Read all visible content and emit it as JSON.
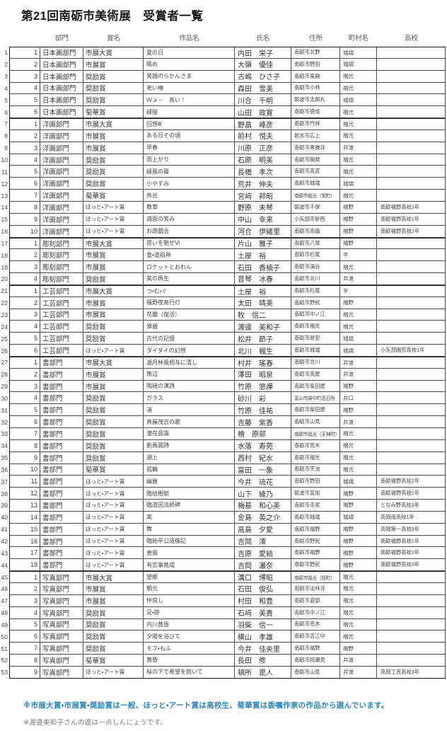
{
  "title": "第21回南砺市美術展　受賞者一覧",
  "accent_note_blue": "#2e86c1",
  "table": {
    "headers": [
      "部門",
      "賞名",
      "作品名",
      "氏名",
      "住所",
      "町村名",
      "高校"
    ],
    "section_starts": [
      7,
      17,
      21,
      27,
      45
    ],
    "rows": [
      {
        "no": 1,
        "sub": 1,
        "dept": "日本画部門",
        "award": "市展大賞",
        "work": "夏の日",
        "name": "内田　栄子",
        "addr": "南砺市北野",
        "town": "城端",
        "school": ""
      },
      {
        "no": 2,
        "sub": 2,
        "dept": "日本画部門",
        "award": "市展賞",
        "work": "眺め",
        "name": "大嶺　優佳",
        "addr": "南砺市野田",
        "town": "城端",
        "school": ""
      },
      {
        "no": 3,
        "sub": 3,
        "dept": "日本画部門",
        "award": "奨励賞",
        "work": "笑顔のらかんさま",
        "name": "古嶋　ひさ子",
        "addr": "南砺市東殿",
        "town": "福光",
        "school": ""
      },
      {
        "no": 4,
        "sub": 4,
        "dept": "日本画部門",
        "award": "奨励賞",
        "work": "老い椿",
        "name": "森田　雪美",
        "addr": "南砺市小林",
        "town": "福光",
        "school": ""
      },
      {
        "no": 5,
        "sub": 5,
        "dept": "日本画部門",
        "award": "奨励賞",
        "work": "Ｗａ－　高い！",
        "name": "川合　千明",
        "addr": "砺波市太郎丸",
        "town": "城端",
        "school": ""
      },
      {
        "no": 6,
        "sub": 6,
        "dept": "日本画部門",
        "award": "菊華賞",
        "work": "緑陰",
        "name": "山田　政寛",
        "addr": "南砺市徳成",
        "town": "福光",
        "school": ""
      },
      {
        "no": 7,
        "sub": 1,
        "dept": "洋画部門",
        "award": "市展大賞",
        "work": "回想Ⅲ",
        "name": "野畠　峰彦",
        "addr": "南砺市竹林",
        "town": "福光",
        "school": ""
      },
      {
        "no": 8,
        "sub": 2,
        "dept": "洋画部門",
        "award": "市展賞",
        "work": "ある日その頃",
        "name": "前村　悦夫",
        "addr": "射水市広上",
        "town": "福光",
        "school": ""
      },
      {
        "no": 9,
        "sub": 3,
        "dept": "洋画部門",
        "award": "市展賞",
        "work": "早春",
        "name": "川原　正彦",
        "addr": "南砺市専勝寺",
        "town": "井波",
        "school": ""
      },
      {
        "no": 10,
        "sub": 4,
        "dept": "洋画部門",
        "award": "奨励賞",
        "work": "雨上がり",
        "name": "石原　明美",
        "addr": "南砺市開発",
        "town": "福光",
        "school": ""
      },
      {
        "no": 11,
        "sub": 5,
        "dept": "洋画部門",
        "award": "奨励賞",
        "work": "緑風の霧",
        "name": "長橋　孝次",
        "addr": "南砺市高宮",
        "town": "福光",
        "school": ""
      },
      {
        "no": 12,
        "sub": 6,
        "dept": "洋画部門",
        "award": "奨励賞",
        "work": "小やすみ",
        "name": "荒井　伸夫",
        "addr": "南砺市城端",
        "town": "城端",
        "school": ""
      },
      {
        "no": 13,
        "sub": 7,
        "dept": "洋画部門",
        "award": "菊華賞",
        "work": "外光",
        "name": "宮﨑　邦昭",
        "addr": "南砺市福光（栄町）",
        "town": "福光",
        "school": ""
      },
      {
        "no": 14,
        "sub": 8,
        "dept": "洋画部門",
        "award": "ほっと・アート賞",
        "work": "教育",
        "name": "野原　未琴",
        "addr": "砺波市千保",
        "town": "福野",
        "school": "南砺福野高校2年"
      },
      {
        "no": 15,
        "sub": 9,
        "dept": "洋画部門",
        "award": "ほっと・アート賞",
        "work": "満面の笑み",
        "name": "中山　幸来",
        "addr": "小矢部市新西",
        "town": "福野",
        "school": "南砺福野高校1年"
      },
      {
        "no": 16,
        "sub": 10,
        "dept": "洋画部門",
        "award": "ほっと・アート賞",
        "work": "お遊戯会",
        "name": "河合　伊緒里",
        "addr": "南砺市高儀",
        "town": "福野",
        "school": "南砺福野高校2年"
      },
      {
        "no": 17,
        "sub": 1,
        "dept": "彫刻部門",
        "award": "市展大賞",
        "work": "思いを馳せⅥ",
        "name": "片山　雅子",
        "addr": "南砺市八塚",
        "town": "福野",
        "school": ""
      },
      {
        "no": 18,
        "sub": 2,
        "dept": "彫刻部門",
        "award": "市展賞",
        "work": "食・道祖神",
        "name": "土屋　裕",
        "addr": "南砺市杉尾",
        "town": "平",
        "school": ""
      },
      {
        "no": 19,
        "sub": 3,
        "dept": "彫刻部門",
        "award": "市展賞",
        "work": "ロケットとおわん",
        "name": "石田　香楠子",
        "addr": "南砺市湯谷",
        "town": "福光",
        "school": ""
      },
      {
        "no": 20,
        "sub": 4,
        "dept": "彫刻部門",
        "award": "奨励賞",
        "work": "美の再生",
        "name": "音琴　冰春",
        "addr": "南砺市北川",
        "town": "井波",
        "school": ""
      },
      {
        "no": 21,
        "sub": 1,
        "dept": "工芸部門",
        "award": "市展大賞",
        "work": "つ・む・ぐ",
        "name": "土屋　裕",
        "addr": "南砺市杉尾",
        "town": "平",
        "school": ""
      },
      {
        "no": 22,
        "sub": 2,
        "dept": "工芸部門",
        "award": "市展賞",
        "work": "福野夜高行灯",
        "name": "太田　晴美",
        "addr": "南砺市野尻",
        "town": "福野",
        "school": ""
      },
      {
        "no": 23,
        "sub": 3,
        "dept": "工芸部門",
        "award": "市展賞",
        "work": "花器（復活）",
        "name": "牧　信二",
        "addr": "南砺市中ノ江",
        "town": "福光",
        "school": ""
      },
      {
        "no": 24,
        "sub": 4,
        "dept": "工芸部門",
        "award": "奨励賞",
        "work": "翠碧",
        "name": "渡邊　美和子",
        "addr": "南砺市福光",
        "town": "福光",
        "school": ""
      },
      {
        "no": 25,
        "sub": 5,
        "dept": "工芸部門",
        "award": "奨励賞",
        "work": "古代の記憶",
        "name": "松井　節子",
        "addr": "南砺市是安",
        "town": "城端",
        "school": ""
      },
      {
        "no": 26,
        "sub": 6,
        "dept": "工芸部門",
        "award": "ほっと・アート賞",
        "work": "タイダイの幻想",
        "name": "北川　楓生",
        "addr": "南砺市城端",
        "town": "城端",
        "school": "小矢部園芸高校1年"
      },
      {
        "no": 27,
        "sub": 1,
        "dept": "書部門",
        "award": "市展大賞",
        "work": "湖月林風相与に清し",
        "name": "村井　瑤春",
        "addr": "南砺市北川",
        "town": "井波",
        "school": ""
      },
      {
        "no": 28,
        "sub": 2,
        "dept": "書部門",
        "award": "市展賞",
        "work": "無辺",
        "name": "澤田　昭泉",
        "addr": "南砺市高屋",
        "town": "井波",
        "school": ""
      },
      {
        "no": 29,
        "sub": 3,
        "dept": "書部門",
        "award": "市展賞",
        "work": "陶硯の漢詩",
        "name": "竹原　悠燁",
        "addr": "南砺市柴田屋",
        "town": "福野",
        "school": ""
      },
      {
        "no": 30,
        "sub": 4,
        "dept": "書部門",
        "award": "奨励賞",
        "work": "ガラス",
        "name": "砂川　彩",
        "addr": "富山市婦中町高日附",
        "town": "井口",
        "school": ""
      },
      {
        "no": 31,
        "sub": 5,
        "dept": "書部門",
        "award": "奨励賞",
        "work": "濤",
        "name": "竹原　佳祐",
        "addr": "南砺市柴田屋",
        "town": "福野",
        "school": ""
      },
      {
        "no": 32,
        "sub": 6,
        "dept": "書部門",
        "award": "奨励賞",
        "work": "斉藤茂吉の歌",
        "name": "吉藤　紫香",
        "addr": "南砺市山見",
        "town": "井波",
        "school": ""
      },
      {
        "no": 33,
        "sub": 7,
        "dept": "書部門",
        "award": "奨励賞",
        "work": "潜在意識",
        "name": "檜　原邨",
        "addr": "南砺市福光（天神町）",
        "town": "福光",
        "school": ""
      },
      {
        "no": 34,
        "sub": 8,
        "dept": "書部門",
        "award": "奨励賞",
        "work": "劉禹錫詩",
        "name": "水落　寿苑",
        "addr": "南砺市荒木",
        "town": "福光",
        "school": ""
      },
      {
        "no": 35,
        "sub": 9,
        "dept": "書部門",
        "award": "奨励賞",
        "work": "湖上",
        "name": "西村　紀水",
        "addr": "南砺市福光",
        "town": "福光",
        "school": ""
      },
      {
        "no": 36,
        "sub": 10,
        "dept": "書部門",
        "award": "菊華賞",
        "work": "孤鶴",
        "name": "富田　一象",
        "addr": "南砺市天池",
        "town": "福光",
        "school": ""
      },
      {
        "no": 37,
        "sub": 11,
        "dept": "書部門",
        "award": "ほっと・アート賞",
        "work": "幽雅",
        "name": "今井　琉花",
        "addr": "南砺市野田",
        "town": "城端",
        "school": "南砺福野高校2年"
      },
      {
        "no": 38,
        "sub": 12,
        "dept": "書部門",
        "award": "ほっと・アート賞",
        "work": "臨枯樹賦",
        "name": "山下　綾乃",
        "addr": "砺波市苗加",
        "town": "福野",
        "school": "南砺福野高校1年"
      },
      {
        "no": 39,
        "sub": 13,
        "dept": "書部門",
        "award": "ほっと・アート賞",
        "work": "臨道因法師碑",
        "name": "梅基　和心美",
        "addr": "南砺市寺家",
        "town": "福野",
        "school": "となみ野高校3年"
      },
      {
        "no": 40,
        "sub": 14,
        "dept": "書部門",
        "award": "ほっと・アート賞",
        "work": "楽",
        "name": "金島　英之介",
        "addr": "南砺市城端",
        "town": "城端",
        "school": "高岡南高校1年"
      },
      {
        "no": 41,
        "sub": 15,
        "dept": "書部門",
        "award": "ほっと・アート賞",
        "work": "舞",
        "name": "高島　夕愛",
        "addr": "南砺市福野",
        "town": "福野",
        "school": "高岡第一高校3年"
      },
      {
        "no": 42,
        "sub": 16,
        "dept": "書部門",
        "award": "ほっと・アート賞",
        "work": "臨始平公造像記",
        "name": "吉岡　澪",
        "addr": "南砺市野尻",
        "town": "福野",
        "school": "南砺福野高校1年"
      },
      {
        "no": 43,
        "sub": 17,
        "dept": "書部門",
        "award": "ほっと・アート賞",
        "work": "恵風",
        "name": "吉原　愛結",
        "addr": "南砺市福野",
        "town": "福野",
        "school": "南砺福野高校2年"
      },
      {
        "no": 44,
        "sub": 18,
        "dept": "書部門",
        "award": "ほっと・アート賞",
        "work": "有志事竟成",
        "name": "吉岡　瀬奈",
        "addr": "南砺市野尻",
        "town": "福野",
        "school": "南砺福野高校3年"
      },
      {
        "no": 45,
        "sub": 1,
        "dept": "写真部門",
        "award": "市展大賞",
        "work": "望郷",
        "name": "溝口　博昭",
        "addr": "南砺市福光（旭町）",
        "town": "福光",
        "school": ""
      },
      {
        "no": 46,
        "sub": 2,
        "dept": "写真部門",
        "award": "市展賞",
        "work": "朝光",
        "name": "石田　俊弘",
        "addr": "南砺市法林寺",
        "town": "福光",
        "school": ""
      },
      {
        "no": 47,
        "sub": 3,
        "dept": "写真部門",
        "award": "市展賞",
        "work": "仲良し",
        "name": "村田　和豊",
        "addr": "南砺市遊部",
        "town": "福光",
        "school": ""
      },
      {
        "no": 48,
        "sub": 4,
        "dept": "写真部門",
        "award": "奨励賞",
        "work": "足・跡",
        "name": "石﨑　美貴",
        "addr": "南砺市中ノ江",
        "town": "福光",
        "school": ""
      },
      {
        "no": 49,
        "sub": 5,
        "dept": "写真部門",
        "award": "奨励賞",
        "work": "内川黄昏",
        "name": "羽柴　信一",
        "addr": "南砺市荒木",
        "town": "福光",
        "school": ""
      },
      {
        "no": 50,
        "sub": 6,
        "dept": "写真部門",
        "award": "奨励賞",
        "work": "夕陽を浴びて",
        "name": "横山　孝雄",
        "addr": "南砺市吉江中",
        "town": "福光",
        "school": ""
      },
      {
        "no": 51,
        "sub": 7,
        "dept": "写真部門",
        "award": "奨励賞",
        "work": "モフ・もふ",
        "name": "今井　佳央里",
        "addr": "南砺市福野",
        "town": "福野",
        "school": ""
      },
      {
        "no": 52,
        "sub": 8,
        "dept": "写真部門",
        "award": "菊華賞",
        "work": "黄昏",
        "name": "長田　修",
        "addr": "南砺市院瀬見",
        "town": "井波",
        "school": ""
      },
      {
        "no": 53,
        "sub": 9,
        "dept": "写真部門",
        "award": "ほっと・アート賞",
        "work": "桜の下で希望を抱いて",
        "name": "頓所　毘人",
        "addr": "南砺市山見",
        "town": "井波",
        "school": "高岡工芸高校3年"
      }
    ]
  },
  "notes": [
    {
      "text": "※市展大賞・市展賞・奨励賞は一般、ほっと・アート賞は高校生、菊華賞は委嘱作家の作品から選んでいます。"
    },
    {
      "text": "※渡邊美和子さんの邊は一点しんにょうです。"
    }
  ]
}
